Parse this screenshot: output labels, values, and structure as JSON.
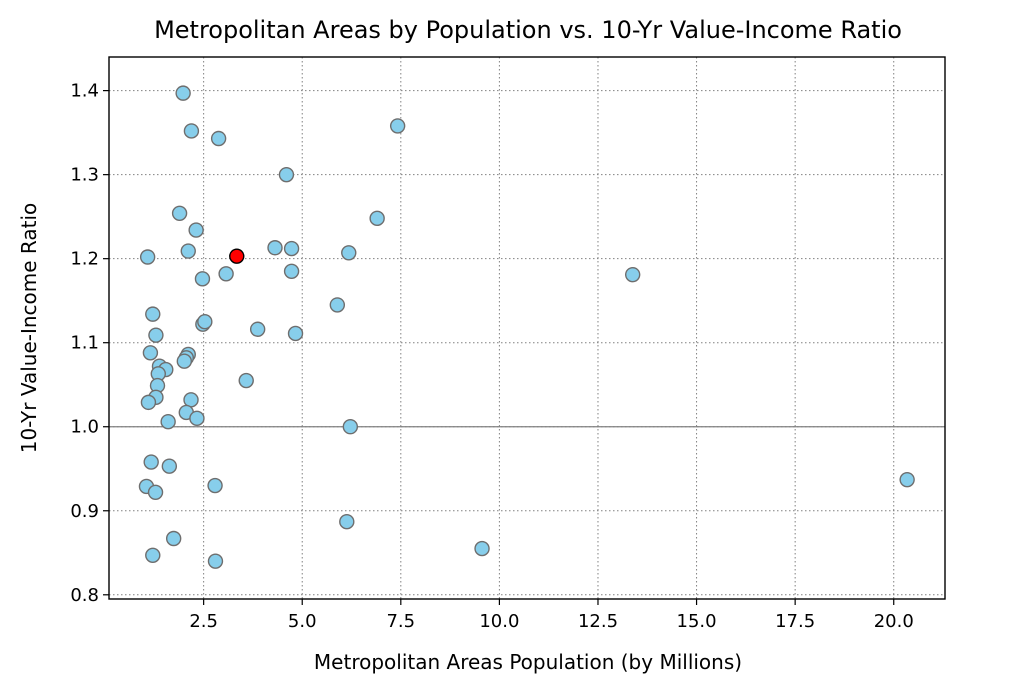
{
  "chart_data": {
    "type": "scatter",
    "title": "Metropolitan Areas by Population vs. 10-Yr Value-Income Ratio",
    "xlabel": "Metropolitan Areas Population (by Millions)",
    "ylabel": "10-Yr Value-Income Ratio",
    "xlim": [
      0.1,
      21.3
    ],
    "ylim": [
      0.795,
      1.44
    ],
    "xticks": [
      "2.5",
      "5.0",
      "7.5",
      "10.0",
      "12.5",
      "15.0",
      "17.5",
      "20.0"
    ],
    "yticks": [
      "0.8",
      "0.9",
      "1.0",
      "1.1",
      "1.2",
      "1.3",
      "1.4"
    ],
    "grid": true,
    "reference_line_y": 1.0,
    "colors": {
      "point": "#87ceeb",
      "point_edge": "#6e6e6e",
      "highlight": "#ff0000",
      "highlight_edge": "#000000",
      "reference": "#808080"
    },
    "highlight": {
      "x": 3.34,
      "y": 1.203
    },
    "points": [
      [
        1.98,
        1.397
      ],
      [
        2.19,
        1.352
      ],
      [
        2.88,
        1.343
      ],
      [
        7.42,
        1.358
      ],
      [
        4.6,
        1.3
      ],
      [
        1.89,
        1.254
      ],
      [
        2.31,
        1.234
      ],
      [
        6.9,
        1.248
      ],
      [
        1.08,
        1.202
      ],
      [
        2.11,
        1.209
      ],
      [
        4.31,
        1.213
      ],
      [
        4.73,
        1.212
      ],
      [
        6.18,
        1.207
      ],
      [
        2.47,
        1.176
      ],
      [
        3.07,
        1.182
      ],
      [
        4.73,
        1.185
      ],
      [
        13.38,
        1.181
      ],
      [
        5.89,
        1.145
      ],
      [
        1.21,
        1.134
      ],
      [
        2.48,
        1.122
      ],
      [
        2.53,
        1.125
      ],
      [
        3.87,
        1.116
      ],
      [
        1.29,
        1.109
      ],
      [
        4.83,
        1.111
      ],
      [
        1.15,
        1.088
      ],
      [
        2.11,
        1.086
      ],
      [
        2.06,
        1.082
      ],
      [
        2.01,
        1.078
      ],
      [
        1.38,
        1.072
      ],
      [
        1.54,
        1.068
      ],
      [
        1.35,
        1.063
      ],
      [
        3.58,
        1.055
      ],
      [
        1.33,
        1.049
      ],
      [
        1.29,
        1.035
      ],
      [
        1.1,
        1.029
      ],
      [
        2.18,
        1.032
      ],
      [
        2.06,
        1.017
      ],
      [
        2.33,
        1.01
      ],
      [
        1.6,
        1.006
      ],
      [
        6.22,
        1.0
      ],
      [
        1.17,
        0.958
      ],
      [
        1.63,
        0.953
      ],
      [
        1.05,
        0.929
      ],
      [
        1.28,
        0.922
      ],
      [
        2.79,
        0.93
      ],
      [
        20.34,
        0.937
      ],
      [
        6.13,
        0.887
      ],
      [
        1.74,
        0.867
      ],
      [
        9.56,
        0.855
      ],
      [
        1.21,
        0.847
      ],
      [
        2.8,
        0.84
      ]
    ]
  }
}
